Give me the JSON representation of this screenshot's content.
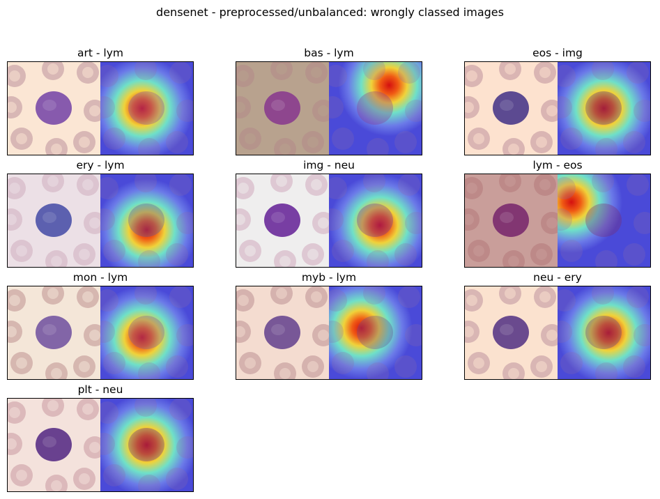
{
  "figure": {
    "title": "densenet - preprocessed/unbalanced: wrongly classed images"
  },
  "panels": [
    {
      "label": "art - lym",
      "bg": "#fbe6d4",
      "cell": "#7a4aa8",
      "rbc": "#c9a3a8",
      "hot": [
        0.45,
        0.5
      ]
    },
    {
      "label": "bas - lym",
      "bg": "#b8a28e",
      "cell": "#8a3c8e",
      "rbc": "#b48f8a",
      "hot": [
        0.65,
        0.25
      ]
    },
    {
      "label": "eos - img",
      "bg": "#fde2cf",
      "cell": "#4a3a8a",
      "rbc": "#caa2a6",
      "hot": [
        0.5,
        0.5
      ]
    },
    {
      "label": "ery - lym",
      "bg": "#ece0e6",
      "cell": "#4d52a8",
      "rbc": "#d6b8c6",
      "hot": [
        0.5,
        0.6
      ]
    },
    {
      "label": "img - neu",
      "bg": "#efeeee",
      "cell": "#6a2a9a",
      "rbc": "#d7b8c8",
      "hot": [
        0.55,
        0.55
      ]
    },
    {
      "label": "lym - eos",
      "bg": "#c99e9a",
      "cell": "#7a2a6e",
      "rbc": "#b88080",
      "hot": [
        0.15,
        0.3
      ]
    },
    {
      "label": "mon - lym",
      "bg": "#f4e6d8",
      "cell": "#7656a2",
      "rbc": "#c9a3a0",
      "hot": [
        0.45,
        0.55
      ]
    },
    {
      "label": "myb - lym",
      "bg": "#f4dcd0",
      "cell": "#6a4890",
      "rbc": "#c79fa0",
      "hot": [
        0.35,
        0.45
      ]
    },
    {
      "label": "neu - ery",
      "bg": "#fbe2cf",
      "cell": "#5a3a86",
      "rbc": "#cba4a8",
      "hot": [
        0.55,
        0.5
      ]
    },
    {
      "label": "plt - neu",
      "bg": "#f4e2dc",
      "cell": "#5a3086",
      "rbc": "#d2a8ac",
      "hot": [
        0.5,
        0.5
      ]
    }
  ]
}
